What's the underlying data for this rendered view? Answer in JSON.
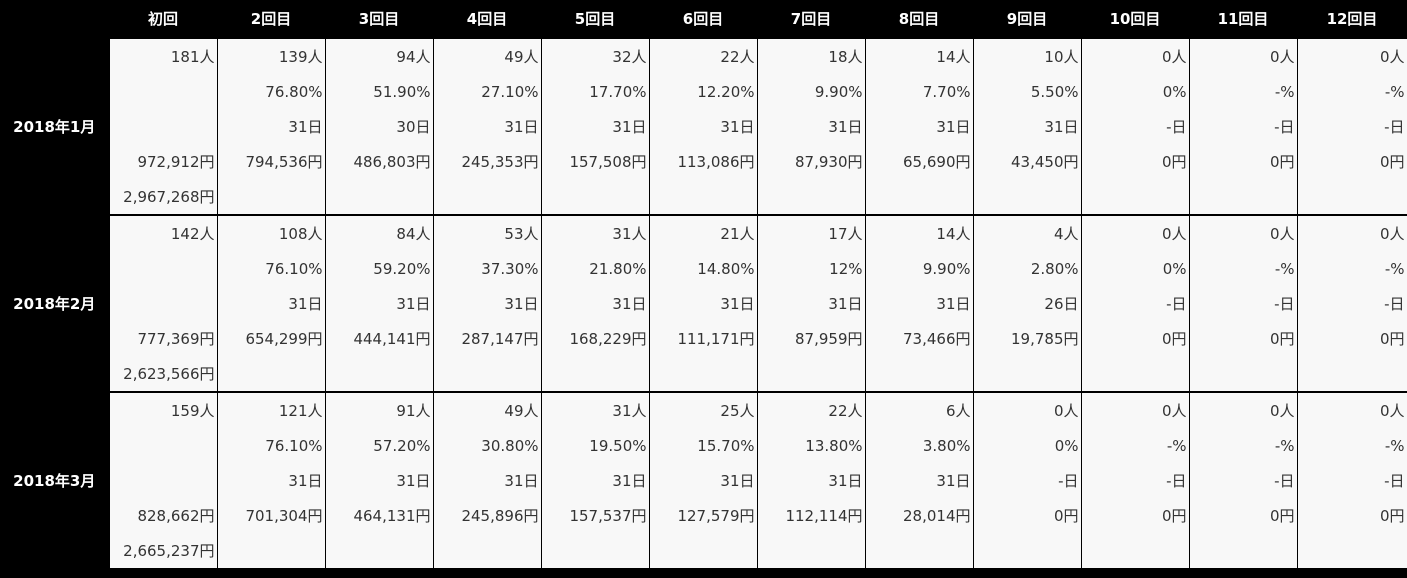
{
  "header": {
    "columns": [
      "初回",
      "2回目",
      "3回目",
      "4回目",
      "5回目",
      "6回目",
      "7回目",
      "8回目",
      "9回目",
      "10回目",
      "11回目",
      "12回目"
    ]
  },
  "groups": [
    {
      "label": "2018年1月",
      "people": [
        "181人",
        "139人",
        "94人",
        "49人",
        "32人",
        "22人",
        "18人",
        "14人",
        "10人",
        "0人",
        "0人",
        "0人"
      ],
      "rate": [
        "",
        "76.80%",
        "51.90%",
        "27.10%",
        "17.70%",
        "12.20%",
        "9.90%",
        "7.70%",
        "5.50%",
        "0%",
        "-%",
        "-%"
      ],
      "days": [
        "",
        "31日",
        "30日",
        "31日",
        "31日",
        "31日",
        "31日",
        "31日",
        "31日",
        "-日",
        "-日",
        "-日"
      ],
      "revenue": [
        "972,912円",
        "794,536円",
        "486,803円",
        "245,353円",
        "157,508円",
        "113,086円",
        "87,930円",
        "65,690円",
        "43,450円",
        "0円",
        "0円",
        "0円"
      ],
      "total": "2,967,268円"
    },
    {
      "label": "2018年2月",
      "people": [
        "142人",
        "108人",
        "84人",
        "53人",
        "31人",
        "21人",
        "17人",
        "14人",
        "4人",
        "0人",
        "0人",
        "0人"
      ],
      "rate": [
        "",
        "76.10%",
        "59.20%",
        "37.30%",
        "21.80%",
        "14.80%",
        "12%",
        "9.90%",
        "2.80%",
        "0%",
        "-%",
        "-%"
      ],
      "days": [
        "",
        "31日",
        "31日",
        "31日",
        "31日",
        "31日",
        "31日",
        "31日",
        "26日",
        "-日",
        "-日",
        "-日"
      ],
      "revenue": [
        "777,369円",
        "654,299円",
        "444,141円",
        "287,147円",
        "168,229円",
        "111,171円",
        "87,959円",
        "73,466円",
        "19,785円",
        "0円",
        "0円",
        "0円"
      ],
      "total": "2,623,566円"
    },
    {
      "label": "2018年3月",
      "people": [
        "159人",
        "121人",
        "91人",
        "49人",
        "31人",
        "25人",
        "22人",
        "6人",
        "0人",
        "0人",
        "0人",
        "0人"
      ],
      "rate": [
        "",
        "76.10%",
        "57.20%",
        "30.80%",
        "19.50%",
        "15.70%",
        "13.80%",
        "3.80%",
        "0%",
        "-%",
        "-%",
        "-%"
      ],
      "days": [
        "",
        "31日",
        "31日",
        "31日",
        "31日",
        "31日",
        "31日",
        "31日",
        "-日",
        "-日",
        "-日",
        "-日"
      ],
      "revenue": [
        "828,662円",
        "701,304円",
        "464,131円",
        "245,896円",
        "157,537円",
        "127,579円",
        "112,114円",
        "28,014円",
        "0円",
        "0円",
        "0円",
        "0円"
      ],
      "total": "2,665,237円"
    }
  ]
}
